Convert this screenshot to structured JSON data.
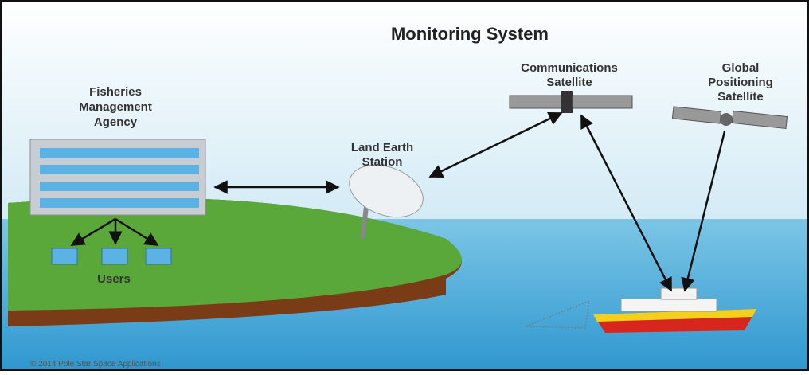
{
  "title": "Monitoring System",
  "nodes": [
    {
      "lines": [
        "Fisheries",
        "Management",
        "Agency"
      ]
    },
    {
      "lines": [
        "Land Earth",
        "Station"
      ]
    },
    {
      "lines": [
        "Communications",
        "Satellite"
      ]
    },
    {
      "lines": [
        "Global",
        "Positioning",
        "Satellite"
      ]
    },
    {
      "lines": [
        "Users"
      ]
    }
  ],
  "footer": "© 2014 Pole Star Space Applications"
}
